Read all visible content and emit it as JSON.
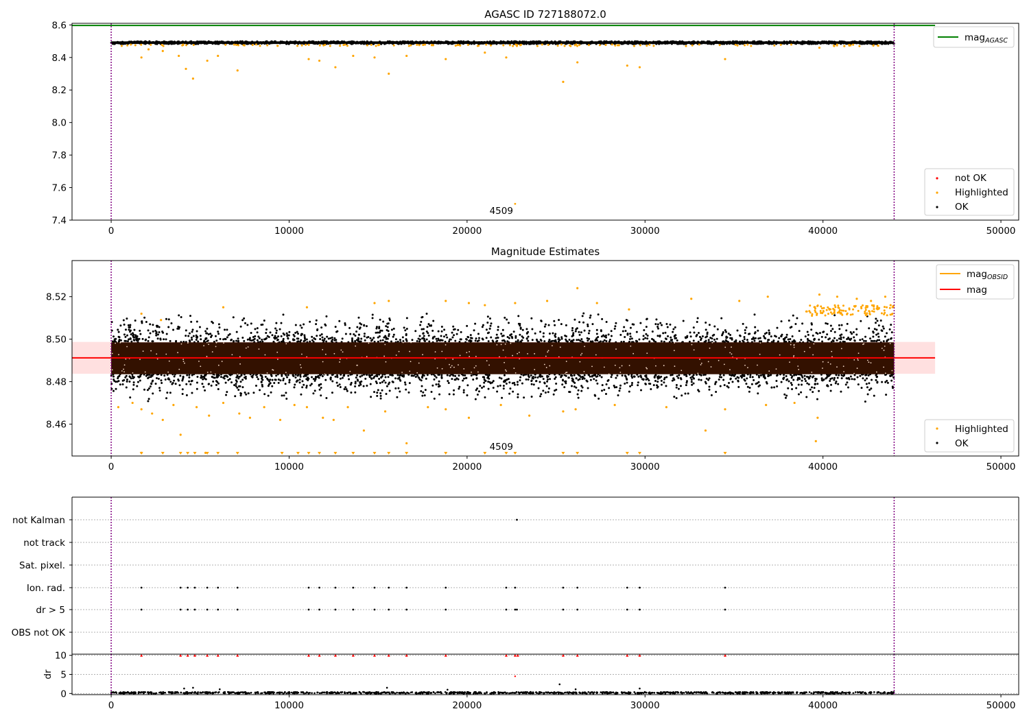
{
  "chart_data": [
    {
      "type": "scatter",
      "title": "AGASC ID 727188072.0",
      "xlim": [
        -2200,
        51000
      ],
      "ylim": [
        7.4,
        8.61
      ],
      "xticks": [
        0,
        10000,
        20000,
        30000,
        40000,
        50000
      ],
      "yticks": [
        7.4,
        7.6,
        7.8,
        8.0,
        8.2,
        8.4,
        8.6
      ],
      "ytick_labels": [
        "7.4",
        "7.6",
        "7.8",
        "8.0",
        "8.2",
        "8.4",
        "8.6"
      ],
      "vlines": [
        0,
        44000
      ],
      "hline": {
        "name": "mag_AGASC",
        "value": 8.597,
        "color": "#008000",
        "x_end": 46300
      },
      "ok_band": {
        "x_start": 0,
        "x_end": 44000,
        "center": 8.491,
        "half_width": 0.008
      },
      "highlighted_points": [
        [
          1700,
          8.4
        ],
        [
          2100,
          8.45
        ],
        [
          2900,
          8.44
        ],
        [
          3800,
          8.41
        ],
        [
          4200,
          8.33
        ],
        [
          4600,
          8.27
        ],
        [
          5400,
          8.38
        ],
        [
          6000,
          8.41
        ],
        [
          7100,
          8.32
        ],
        [
          11100,
          8.39
        ],
        [
          11700,
          8.38
        ],
        [
          12600,
          8.34
        ],
        [
          13600,
          8.41
        ],
        [
          14800,
          8.4
        ],
        [
          15600,
          8.3
        ],
        [
          16600,
          8.41
        ],
        [
          18800,
          8.39
        ],
        [
          21000,
          8.43
        ],
        [
          22200,
          8.4
        ],
        [
          25400,
          8.25
        ],
        [
          26200,
          8.37
        ],
        [
          29000,
          8.35
        ],
        [
          29700,
          8.34
        ],
        [
          34500,
          8.39
        ],
        [
          39800,
          8.46
        ],
        [
          41200,
          8.47
        ]
      ],
      "not_ok_points": [],
      "annotation": {
        "text": "4509",
        "x": 22000,
        "y": 7.43
      },
      "outlier_ok_point": [
        22700,
        7.5
      ],
      "legend_top": {
        "position": "top-right",
        "label": "mag",
        "subscript": "AGASC"
      },
      "legend_bottom": {
        "position": "lower-right",
        "entries": [
          {
            "label": "not OK",
            "color": "#ff0000"
          },
          {
            "label": "Highlighted",
            "color": "#ffa500"
          },
          {
            "label": "OK",
            "color": "#000000"
          }
        ]
      },
      "xtick_labels": [
        "0",
        "10000",
        "20000",
        "30000",
        "40000",
        "50000"
      ]
    },
    {
      "type": "scatter",
      "title": "Magnitude Estimates",
      "xlim": [
        -2200,
        51000
      ],
      "ylim": [
        8.445,
        8.537
      ],
      "xticks": [
        0,
        10000,
        20000,
        30000,
        40000,
        50000
      ],
      "yticks": [
        8.46,
        8.48,
        8.5,
        8.52
      ],
      "ytick_labels": [
        "8.46",
        "8.48",
        "8.50",
        "8.52"
      ],
      "vlines": [
        0,
        44000
      ],
      "mag_line": {
        "name": "mag",
        "value": 8.4912,
        "color": "#ff0000",
        "x_end": 46300
      },
      "mag_band": {
        "low": 8.4837,
        "high": 8.4987,
        "x_end": 46300
      },
      "dense_band": {
        "x_start": 0,
        "x_end": 44000,
        "low": 8.4835,
        "high": 8.4985,
        "color": "#331100"
      },
      "ok_scatter_range": {
        "low": 8.47,
        "high": 8.513
      },
      "highlighted_points": [
        [
          400,
          8.468
        ],
        [
          1200,
          8.47
        ],
        [
          1700,
          8.467
        ],
        [
          2300,
          8.465
        ],
        [
          2900,
          8.462
        ],
        [
          3500,
          8.469
        ],
        [
          3900,
          8.455
        ],
        [
          4800,
          8.468
        ],
        [
          5500,
          8.464
        ],
        [
          6300,
          8.47
        ],
        [
          7200,
          8.465
        ],
        [
          7800,
          8.463
        ],
        [
          8600,
          8.468
        ],
        [
          9500,
          8.462
        ],
        [
          10300,
          8.469
        ],
        [
          11000,
          8.468
        ],
        [
          11900,
          8.463
        ],
        [
          12500,
          8.462
        ],
        [
          13300,
          8.468
        ],
        [
          14200,
          8.457
        ],
        [
          15400,
          8.466
        ],
        [
          16600,
          8.451
        ],
        [
          17800,
          8.468
        ],
        [
          18800,
          8.467
        ],
        [
          20100,
          8.463
        ],
        [
          21900,
          8.469
        ],
        [
          23500,
          8.464
        ],
        [
          25400,
          8.466
        ],
        [
          26100,
          8.467
        ],
        [
          28300,
          8.469
        ],
        [
          31200,
          8.468
        ],
        [
          33400,
          8.457
        ],
        [
          34500,
          8.467
        ],
        [
          36800,
          8.469
        ],
        [
          38400,
          8.47
        ],
        [
          39700,
          8.463
        ],
        [
          39600,
          8.452
        ],
        [
          1700,
          8.512
        ],
        [
          2800,
          8.509
        ],
        [
          6300,
          8.515
        ],
        [
          11000,
          8.515
        ],
        [
          14800,
          8.517
        ],
        [
          15600,
          8.518
        ],
        [
          18800,
          8.518
        ],
        [
          20100,
          8.517
        ],
        [
          21000,
          8.516
        ],
        [
          22700,
          8.517
        ],
        [
          24500,
          8.518
        ],
        [
          26200,
          8.524
        ],
        [
          27300,
          8.517
        ],
        [
          29100,
          8.514
        ],
        [
          32600,
          8.519
        ],
        [
          35300,
          8.518
        ],
        [
          36900,
          8.52
        ],
        [
          39800,
          8.521
        ],
        [
          40800,
          8.52
        ],
        [
          41900,
          8.519
        ],
        [
          42700,
          8.518
        ],
        [
          43500,
          8.52
        ],
        [
          43800,
          8.516
        ]
      ],
      "highlighted_floor_x": [
        1700,
        2900,
        3900,
        4300,
        4700,
        5400,
        6000,
        7100,
        9600,
        10500,
        11100,
        11700,
        12600,
        13600,
        14800,
        15600,
        16600,
        18800,
        21000,
        22200,
        22700,
        25400,
        26200,
        29000,
        29700,
        34500
      ],
      "annotation": {
        "text": "4509",
        "x": 22000,
        "y": 8.4475
      },
      "legend_top": {
        "position": "top-right",
        "entries": [
          {
            "label": "mag",
            "subscript": "OBSID",
            "color": "#ffa500"
          },
          {
            "label": "mag",
            "subscript": "",
            "color": "#ff0000"
          }
        ]
      },
      "legend_bottom": {
        "position": "lower-right",
        "entries": [
          {
            "label": "Highlighted",
            "color": "#ffa500"
          },
          {
            "label": "OK",
            "color": "#000000"
          }
        ]
      },
      "xtick_labels": [
        "0",
        "10000",
        "20000",
        "30000",
        "40000",
        "50000"
      ]
    },
    {
      "type": "scatter",
      "title": "",
      "xlim": [
        -2200,
        51000
      ],
      "flag_rows": [
        "not Kalman",
        "not track",
        "Sat. pixel.",
        "Ion. rad.",
        "dr > 5",
        "OBS not OK"
      ],
      "vlines": [
        0,
        44000
      ],
      "flag_points": {
        "not Kalman": [
          22800
        ],
        "not track": [],
        "Sat. pixel.": [],
        "Ion. rad.": [
          1700,
          3900,
          4300,
          4700,
          5400,
          6000,
          7100,
          11100,
          11700,
          12600,
          13600,
          14800,
          15600,
          16600,
          18800,
          22200,
          22700,
          25400,
          26200,
          29000,
          29700,
          34500
        ],
        "dr > 5": [
          1700,
          3900,
          4300,
          4700,
          5400,
          6000,
          7100,
          11100,
          11700,
          12600,
          13600,
          14800,
          15600,
          16600,
          18800,
          22200,
          22700,
          22800,
          25400,
          26200,
          29000,
          29700,
          34500
        ],
        "OBS not OK": []
      },
      "dr_ylabel": "dr",
      "dr_ylim": [
        -0.3,
        10.3
      ],
      "dr_yticks": [
        0,
        5,
        10
      ],
      "dr_ytick_labels": [
        "0",
        "5",
        "10"
      ],
      "dr_high_points": [
        [
          1700,
          10
        ],
        [
          3900,
          10
        ],
        [
          4300,
          10
        ],
        [
          4700,
          10
        ],
        [
          5400,
          10
        ],
        [
          6000,
          10
        ],
        [
          7100,
          10
        ],
        [
          11100,
          10
        ],
        [
          11700,
          10
        ],
        [
          12600,
          10
        ],
        [
          13600,
          10
        ],
        [
          14800,
          10
        ],
        [
          15600,
          10
        ],
        [
          16600,
          10
        ],
        [
          18800,
          10
        ],
        [
          22200,
          10
        ],
        [
          22700,
          10
        ],
        [
          22850,
          10
        ],
        [
          25400,
          10
        ],
        [
          26200,
          10
        ],
        [
          29000,
          10
        ],
        [
          29700,
          10
        ],
        [
          34500,
          10
        ]
      ],
      "dr_mid_points": [
        [
          22700,
          4.5
        ]
      ],
      "dr_scatter_points": [
        [
          4100,
          1.3
        ],
        [
          4600,
          1.5
        ],
        [
          6100,
          1.1
        ],
        [
          15500,
          1.5
        ],
        [
          18900,
          1.0
        ],
        [
          25200,
          2.4
        ],
        [
          26100,
          1.1
        ],
        [
          29700,
          1.3
        ]
      ],
      "xtick_labels": [
        "0",
        "10000",
        "20000",
        "30000",
        "40000",
        "50000"
      ]
    }
  ]
}
